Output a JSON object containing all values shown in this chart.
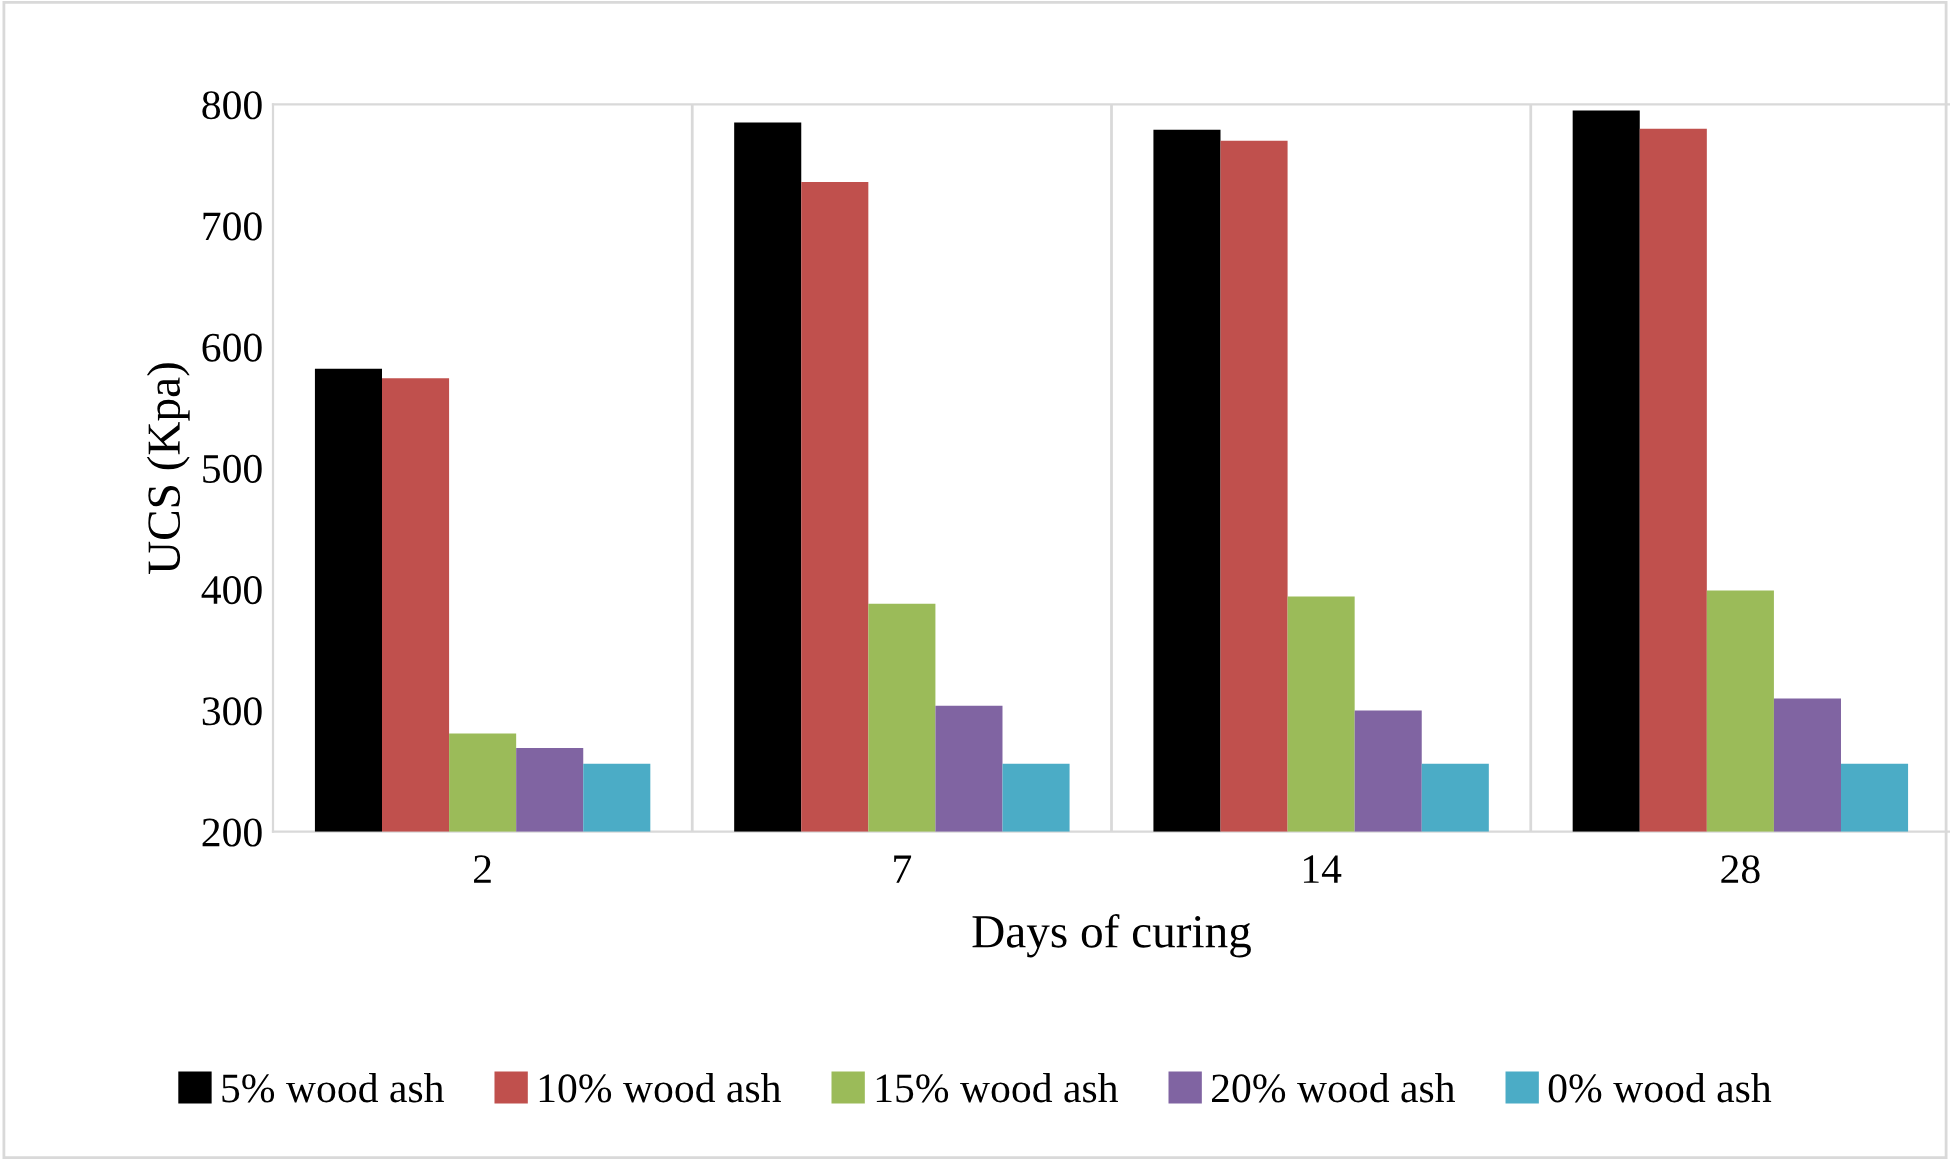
{
  "chart_data": {
    "type": "bar",
    "xlabel": "Days of curing",
    "ylabel": "UCS (Kpa)",
    "categories": [
      "2",
      "7",
      "14",
      "28"
    ],
    "series": [
      {
        "name": "5% wood ash",
        "color": "#000000",
        "values": [
          582,
          785,
          779,
          795
        ]
      },
      {
        "name": "10% wood ash",
        "color": "#c0504d",
        "values": [
          574,
          736,
          770,
          780
        ]
      },
      {
        "name": "15% wood ash",
        "color": "#9bbb59",
        "values": [
          281,
          388,
          394,
          399
        ]
      },
      {
        "name": "20% wood ash",
        "color": "#8064a2",
        "values": [
          269,
          304,
          300,
          310
        ]
      },
      {
        "name": "0% wood ash",
        "color": "#4bacc6",
        "values": [
          256,
          256,
          256,
          256
        ]
      }
    ],
    "ylim": [
      200,
      800
    ],
    "yticks": [
      200,
      300,
      400,
      500,
      600,
      700,
      800
    ],
    "grid": "x",
    "legend": "bottom"
  }
}
